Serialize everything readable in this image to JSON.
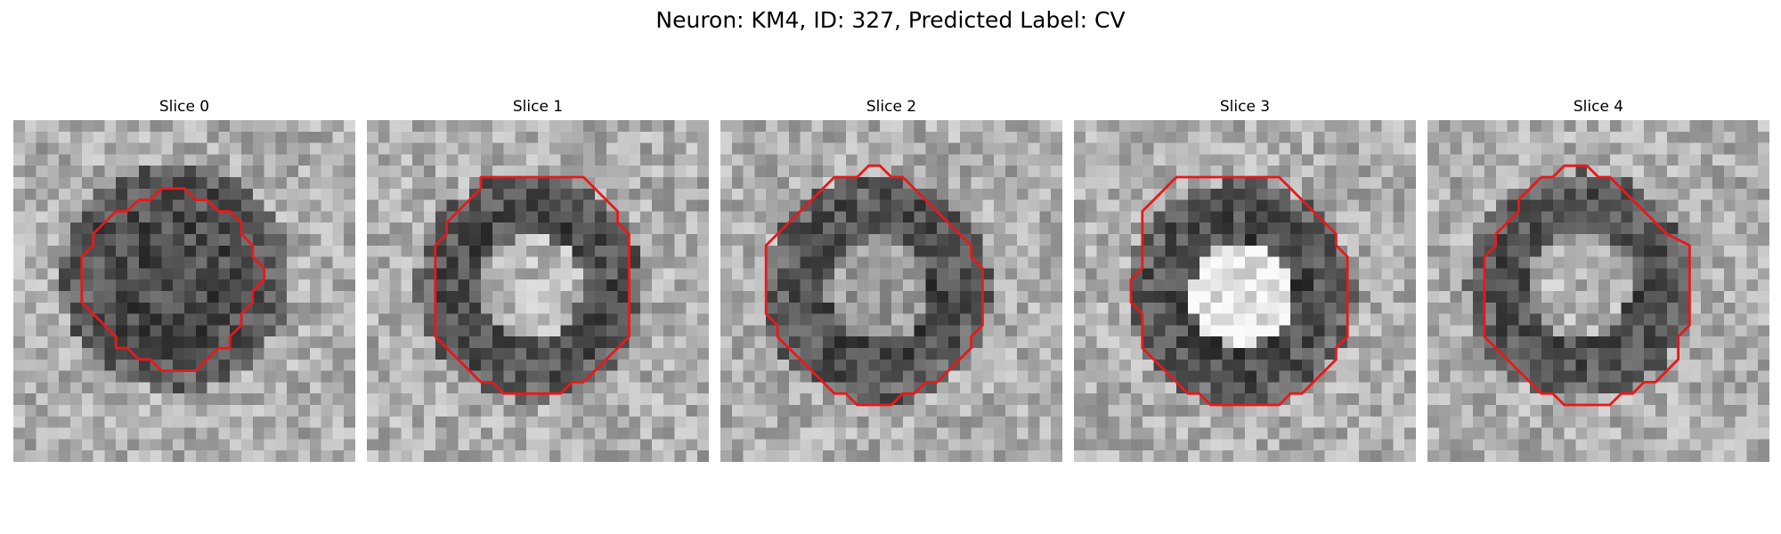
{
  "figure": {
    "title": "Neuron: KM4, ID: 327, Predicted Label: CV"
  },
  "panels": [
    {
      "title": "Slice 0",
      "ring": "dark-ring",
      "center_brightness": 0.3,
      "contour": [
        [
          13,
          6
        ],
        [
          15,
          6
        ],
        [
          16,
          7
        ],
        [
          17,
          7
        ],
        [
          18,
          8
        ],
        [
          19,
          8
        ],
        [
          20,
          9
        ],
        [
          20,
          10
        ],
        [
          21,
          11
        ],
        [
          21,
          12
        ],
        [
          22,
          13
        ],
        [
          22,
          14
        ],
        [
          21,
          15
        ],
        [
          21,
          16
        ],
        [
          20,
          17
        ],
        [
          20,
          18
        ],
        [
          19,
          19
        ],
        [
          19,
          20
        ],
        [
          18,
          20
        ],
        [
          17,
          21
        ],
        [
          16,
          22
        ],
        [
          13,
          22
        ],
        [
          12,
          21
        ],
        [
          11,
          21
        ],
        [
          10,
          20
        ],
        [
          9,
          20
        ],
        [
          9,
          19
        ],
        [
          8,
          18
        ],
        [
          7,
          17
        ],
        [
          6,
          16
        ],
        [
          6,
          14
        ],
        [
          6,
          12
        ],
        [
          7,
          11
        ],
        [
          7,
          10
        ],
        [
          8,
          9
        ],
        [
          9,
          8
        ],
        [
          10,
          8
        ],
        [
          11,
          7
        ],
        [
          12,
          7
        ]
      ]
    },
    {
      "title": "Slice 1",
      "ring": "dark-ring",
      "center_brightness": 0.72,
      "contour": [
        [
          10,
          5
        ],
        [
          15,
          5
        ],
        [
          19,
          5
        ],
        [
          20,
          6
        ],
        [
          21,
          7
        ],
        [
          22,
          8
        ],
        [
          22,
          9
        ],
        [
          23,
          10
        ],
        [
          23,
          11
        ],
        [
          23,
          12
        ],
        [
          23,
          15
        ],
        [
          23,
          19
        ],
        [
          22,
          20
        ],
        [
          21,
          21
        ],
        [
          20,
          22
        ],
        [
          19,
          23
        ],
        [
          18,
          23
        ],
        [
          17,
          24
        ],
        [
          12,
          24
        ],
        [
          11,
          23
        ],
        [
          10,
          23
        ],
        [
          9,
          22
        ],
        [
          8,
          21
        ],
        [
          7,
          20
        ],
        [
          6,
          19
        ],
        [
          6,
          18
        ],
        [
          6,
          17
        ],
        [
          6,
          14
        ],
        [
          6,
          11
        ],
        [
          7,
          10
        ],
        [
          7,
          9
        ],
        [
          8,
          8
        ],
        [
          9,
          7
        ],
        [
          10,
          6
        ]
      ]
    },
    {
      "title": "Slice 2",
      "ring": "dark-ring",
      "center_brightness": 0.6,
      "contour": [
        [
          12,
          5
        ],
        [
          13,
          4
        ],
        [
          14,
          4
        ],
        [
          15,
          5
        ],
        [
          16,
          5
        ],
        [
          17,
          6
        ],
        [
          18,
          7
        ],
        [
          19,
          8
        ],
        [
          20,
          9
        ],
        [
          21,
          10
        ],
        [
          22,
          11
        ],
        [
          22,
          12
        ],
        [
          23,
          13
        ],
        [
          23,
          16
        ],
        [
          23,
          18
        ],
        [
          22,
          19
        ],
        [
          22,
          20
        ],
        [
          21,
          21
        ],
        [
          20,
          22
        ],
        [
          19,
          23
        ],
        [
          18,
          23
        ],
        [
          17,
          24
        ],
        [
          16,
          24
        ],
        [
          15,
          25
        ],
        [
          14,
          25
        ],
        [
          12,
          25
        ],
        [
          11,
          24
        ],
        [
          10,
          24
        ],
        [
          9,
          23
        ],
        [
          8,
          22
        ],
        [
          7,
          21
        ],
        [
          6,
          20
        ],
        [
          5,
          19
        ],
        [
          5,
          18
        ],
        [
          4,
          17
        ],
        [
          4,
          14
        ],
        [
          4,
          11
        ],
        [
          5,
          10
        ],
        [
          6,
          9
        ],
        [
          7,
          8
        ],
        [
          8,
          7
        ],
        [
          9,
          6
        ],
        [
          10,
          5
        ]
      ]
    },
    {
      "title": "Slice 3",
      "ring": "dark-ring",
      "center_brightness": 0.92,
      "contour": [
        [
          8,
          6
        ],
        [
          9,
          5
        ],
        [
          12,
          5
        ],
        [
          15,
          5
        ],
        [
          18,
          5
        ],
        [
          19,
          6
        ],
        [
          20,
          7
        ],
        [
          21,
          8
        ],
        [
          22,
          9
        ],
        [
          23,
          10
        ],
        [
          23,
          11
        ],
        [
          24,
          12
        ],
        [
          24,
          15
        ],
        [
          24,
          19
        ],
        [
          23,
          20
        ],
        [
          23,
          21
        ],
        [
          22,
          22
        ],
        [
          21,
          23
        ],
        [
          20,
          24
        ],
        [
          19,
          24
        ],
        [
          18,
          25
        ],
        [
          15,
          25
        ],
        [
          12,
          25
        ],
        [
          11,
          24
        ],
        [
          10,
          24
        ],
        [
          9,
          23
        ],
        [
          8,
          22
        ],
        [
          7,
          21
        ],
        [
          6,
          20
        ],
        [
          6,
          17
        ],
        [
          5,
          16
        ],
        [
          5,
          14
        ],
        [
          6,
          13
        ],
        [
          6,
          10
        ],
        [
          6,
          8
        ],
        [
          7,
          7
        ]
      ]
    },
    {
      "title": "Slice 4",
      "ring": "dark-ring",
      "center_brightness": 0.7,
      "contour": [
        [
          9,
          6
        ],
        [
          10,
          5
        ],
        [
          11,
          5
        ],
        [
          12,
          4
        ],
        [
          13,
          4
        ],
        [
          14,
          4
        ],
        [
          15,
          5
        ],
        [
          16,
          5
        ],
        [
          17,
          6
        ],
        [
          18,
          7
        ],
        [
          19,
          8
        ],
        [
          20,
          9
        ],
        [
          21,
          10
        ],
        [
          23,
          11
        ],
        [
          23,
          12
        ],
        [
          23,
          15
        ],
        [
          23,
          18
        ],
        [
          22,
          19
        ],
        [
          22,
          21
        ],
        [
          21,
          22
        ],
        [
          20,
          23
        ],
        [
          19,
          23
        ],
        [
          18,
          24
        ],
        [
          17,
          24
        ],
        [
          16,
          25
        ],
        [
          14,
          25
        ],
        [
          12,
          25
        ],
        [
          11,
          24
        ],
        [
          10,
          24
        ],
        [
          9,
          23
        ],
        [
          8,
          22
        ],
        [
          7,
          21
        ],
        [
          6,
          20
        ],
        [
          5,
          19
        ],
        [
          5,
          18
        ],
        [
          5,
          16
        ],
        [
          5,
          14
        ],
        [
          5,
          12
        ],
        [
          6,
          11
        ],
        [
          6,
          10
        ],
        [
          7,
          9
        ],
        [
          8,
          8
        ],
        [
          8,
          7
        ]
      ]
    }
  ],
  "colors": {
    "contour": "#e8191a",
    "background": "#ffffff"
  }
}
